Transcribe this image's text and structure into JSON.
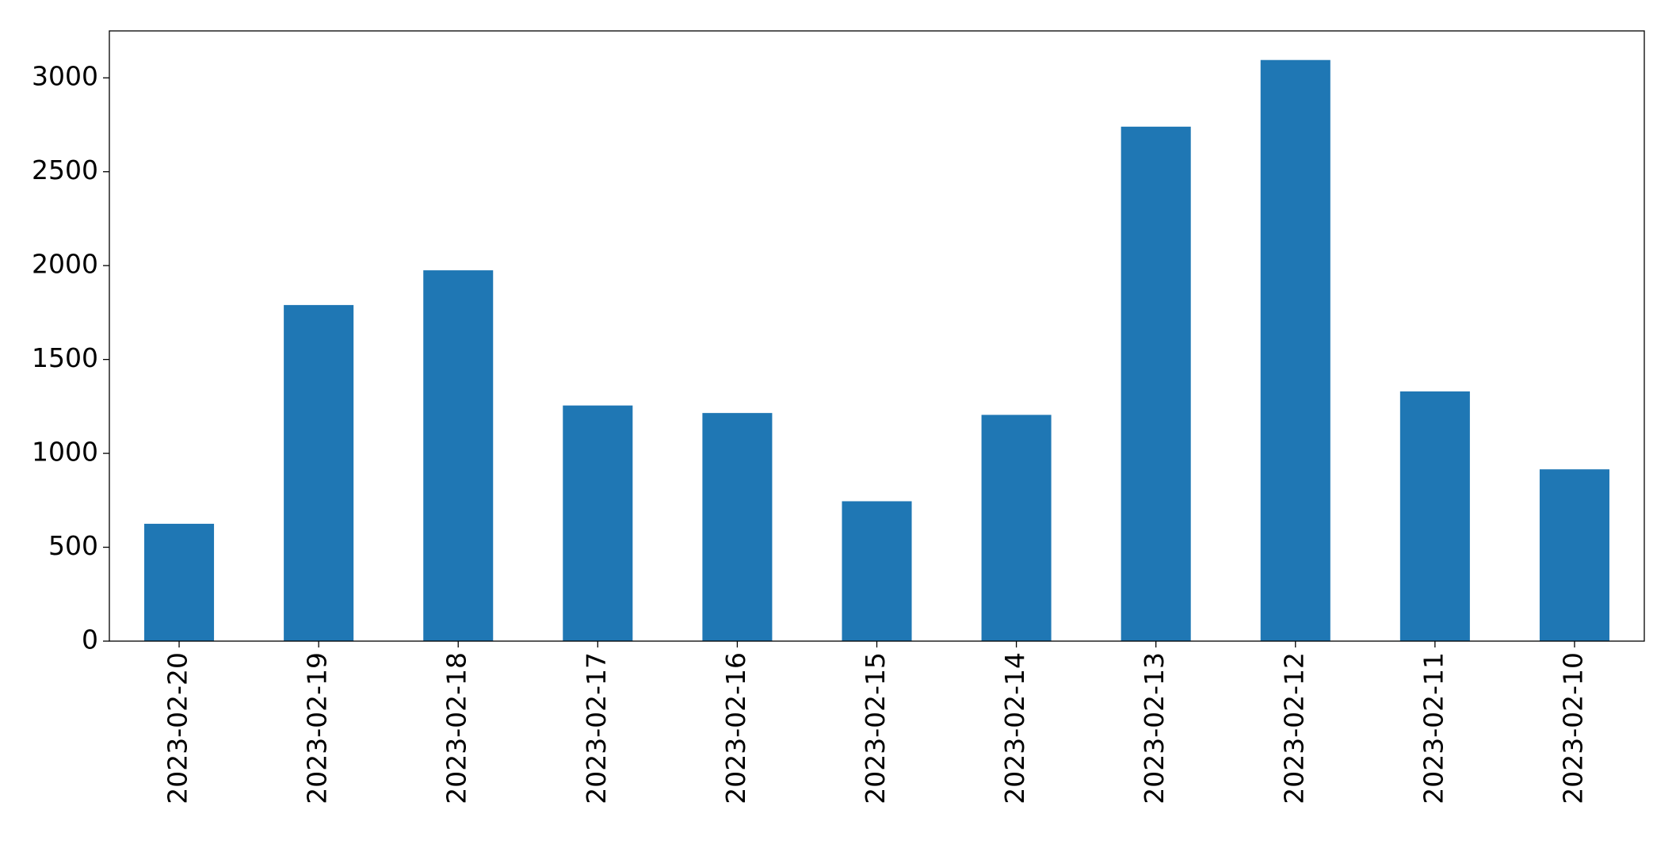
{
  "chart_data": {
    "type": "bar",
    "categories": [
      "2023-02-20",
      "2023-02-19",
      "2023-02-18",
      "2023-02-17",
      "2023-02-16",
      "2023-02-15",
      "2023-02-14",
      "2023-02-13",
      "2023-02-12",
      "2023-02-11",
      "2023-02-10"
    ],
    "values": [
      625,
      1790,
      1975,
      1255,
      1215,
      745,
      1205,
      2740,
      3095,
      1330,
      915
    ],
    "color": "#1f77b4",
    "ylim": [
      0,
      3250
    ],
    "yticks": [
      0,
      500,
      1000,
      1500,
      2000,
      2500,
      3000
    ],
    "grid": false
  }
}
